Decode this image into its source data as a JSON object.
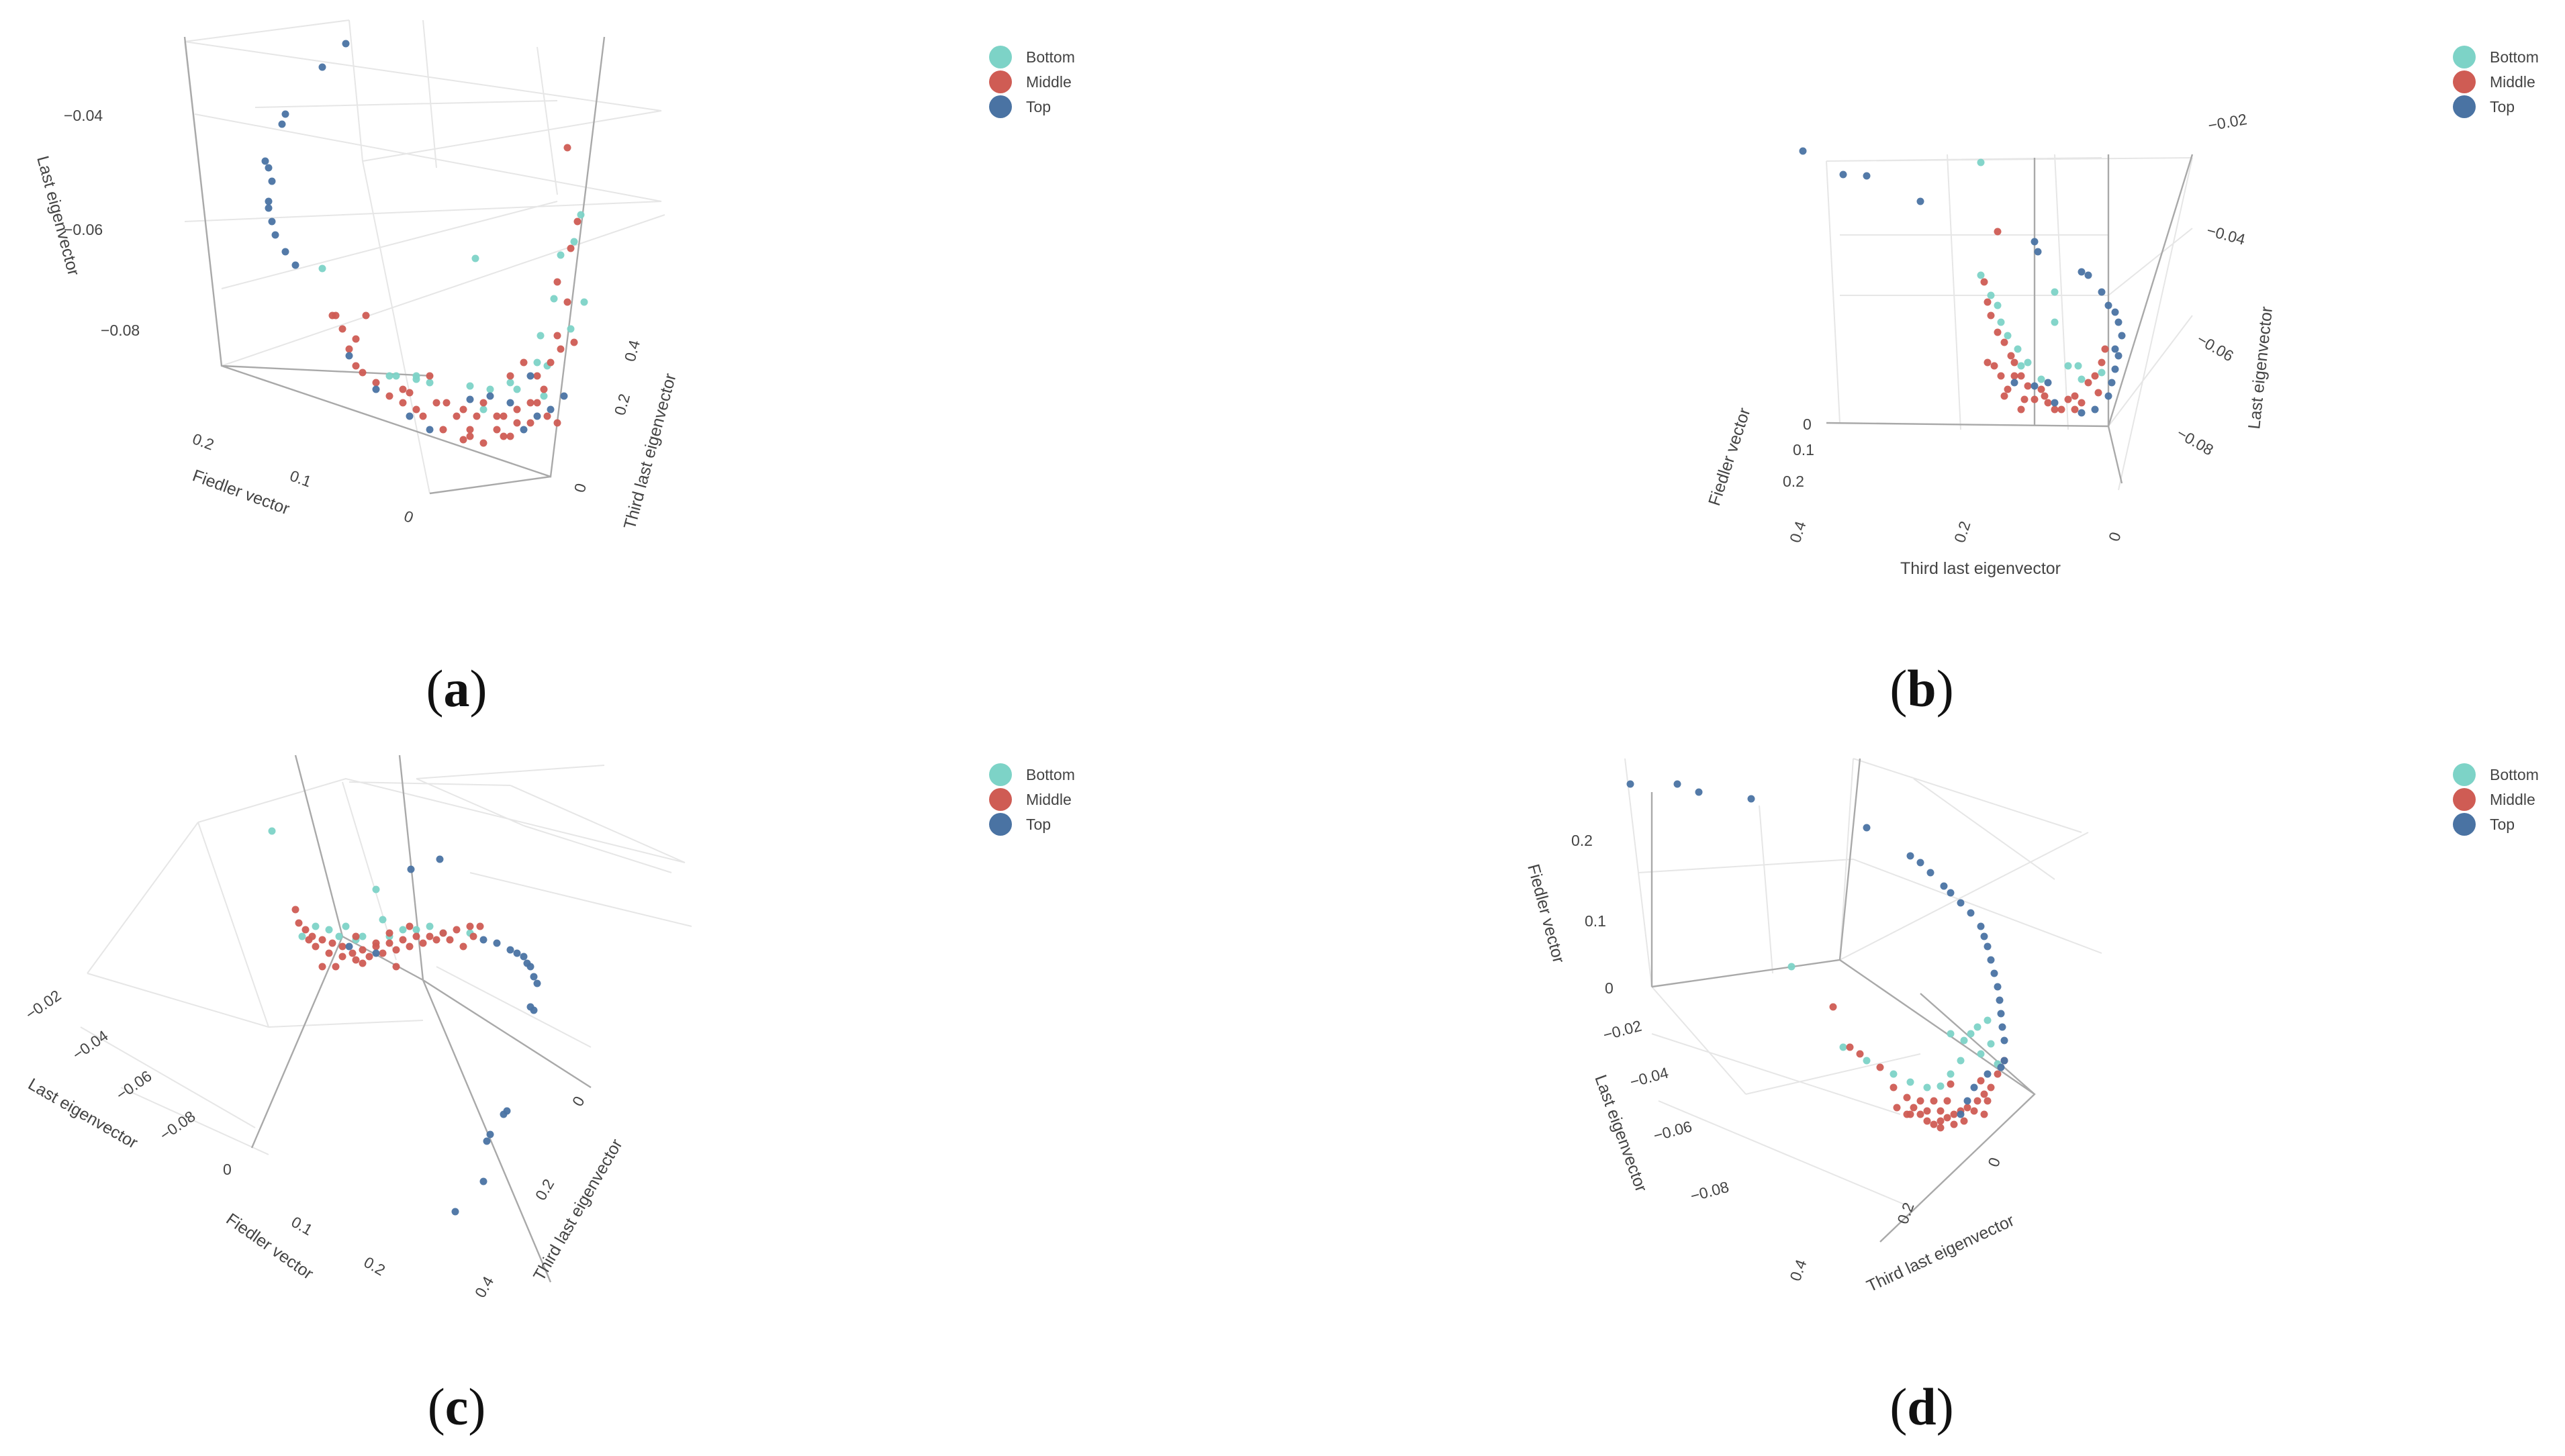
{
  "figure": {
    "legend_entries": [
      "Bottom",
      "Middle",
      "Top"
    ],
    "legend_colors": [
      "#7dd3c7",
      "#cf5c54",
      "#4a73a3"
    ]
  },
  "chart_data": [
    {
      "type": "scatter3d",
      "caption_open": "(",
      "caption_letter": "a",
      "caption_close": ")",
      "xlabel": "Fiedler vector",
      "ylabel": "Third last eigenvector",
      "zlabel": "Last eigenvector",
      "x_ticks": [
        "0.2",
        "0.1",
        "0"
      ],
      "y_ticks": [
        "0.4",
        "0.2",
        "0"
      ],
      "z_ticks": [
        "−0.04",
        "−0.06",
        "−0.08"
      ],
      "legend": [
        "Bottom",
        "Middle",
        "Top"
      ],
      "colors": {
        "Bottom": "#7dd3c7",
        "Middle": "#cf5c54",
        "Top": "#4a73a3"
      }
    },
    {
      "type": "scatter3d",
      "caption_open": "(",
      "caption_letter": "b",
      "caption_close": ")",
      "xlabel": "Fiedler vector",
      "ylabel": "Third last eigenvector",
      "zlabel": "Last eigenvector",
      "x_ticks": [
        "0",
        "0.1",
        "0.2"
      ],
      "y_ticks": [
        "0.4",
        "0.2",
        "0"
      ],
      "z_ticks": [
        "−0.02",
        "−0.04",
        "−0.06",
        "−0.08"
      ],
      "legend": [
        "Bottom",
        "Middle",
        "Top"
      ],
      "colors": {
        "Bottom": "#7dd3c7",
        "Middle": "#cf5c54",
        "Top": "#4a73a3"
      }
    },
    {
      "type": "scatter3d",
      "caption_open": "(",
      "caption_letter": "c",
      "caption_close": ")",
      "xlabel": "Fiedler vector",
      "ylabel": "Third last eigenvector",
      "zlabel": "Last eigenvector",
      "x_ticks": [
        "0",
        "0.1",
        "0.2"
      ],
      "y_ticks": [
        "0",
        "0.2",
        "0.4"
      ],
      "z_ticks": [
        "−0.02",
        "−0.04",
        "−0.06",
        "−0.08"
      ],
      "legend": [
        "Bottom",
        "Middle",
        "Top"
      ],
      "colors": {
        "Bottom": "#7dd3c7",
        "Middle": "#cf5c54",
        "Top": "#4a73a3"
      }
    },
    {
      "type": "scatter3d",
      "caption_open": "(",
      "caption_letter": "d",
      "caption_close": ")",
      "xlabel": "Fiedler vector",
      "ylabel": "Third last eigenvector",
      "zlabel": "Last eigenvector",
      "x_ticks": [
        "0.2",
        "0.1",
        "0"
      ],
      "y_ticks": [
        "0.4",
        "0.2",
        "0"
      ],
      "z_ticks": [
        "−0.02",
        "−0.04",
        "−0.06",
        "−0.08"
      ],
      "legend": [
        "Bottom",
        "Middle",
        "Top"
      ],
      "colors": {
        "Bottom": "#7dd3c7",
        "Middle": "#cf5c54",
        "Top": "#4a73a3"
      }
    }
  ]
}
